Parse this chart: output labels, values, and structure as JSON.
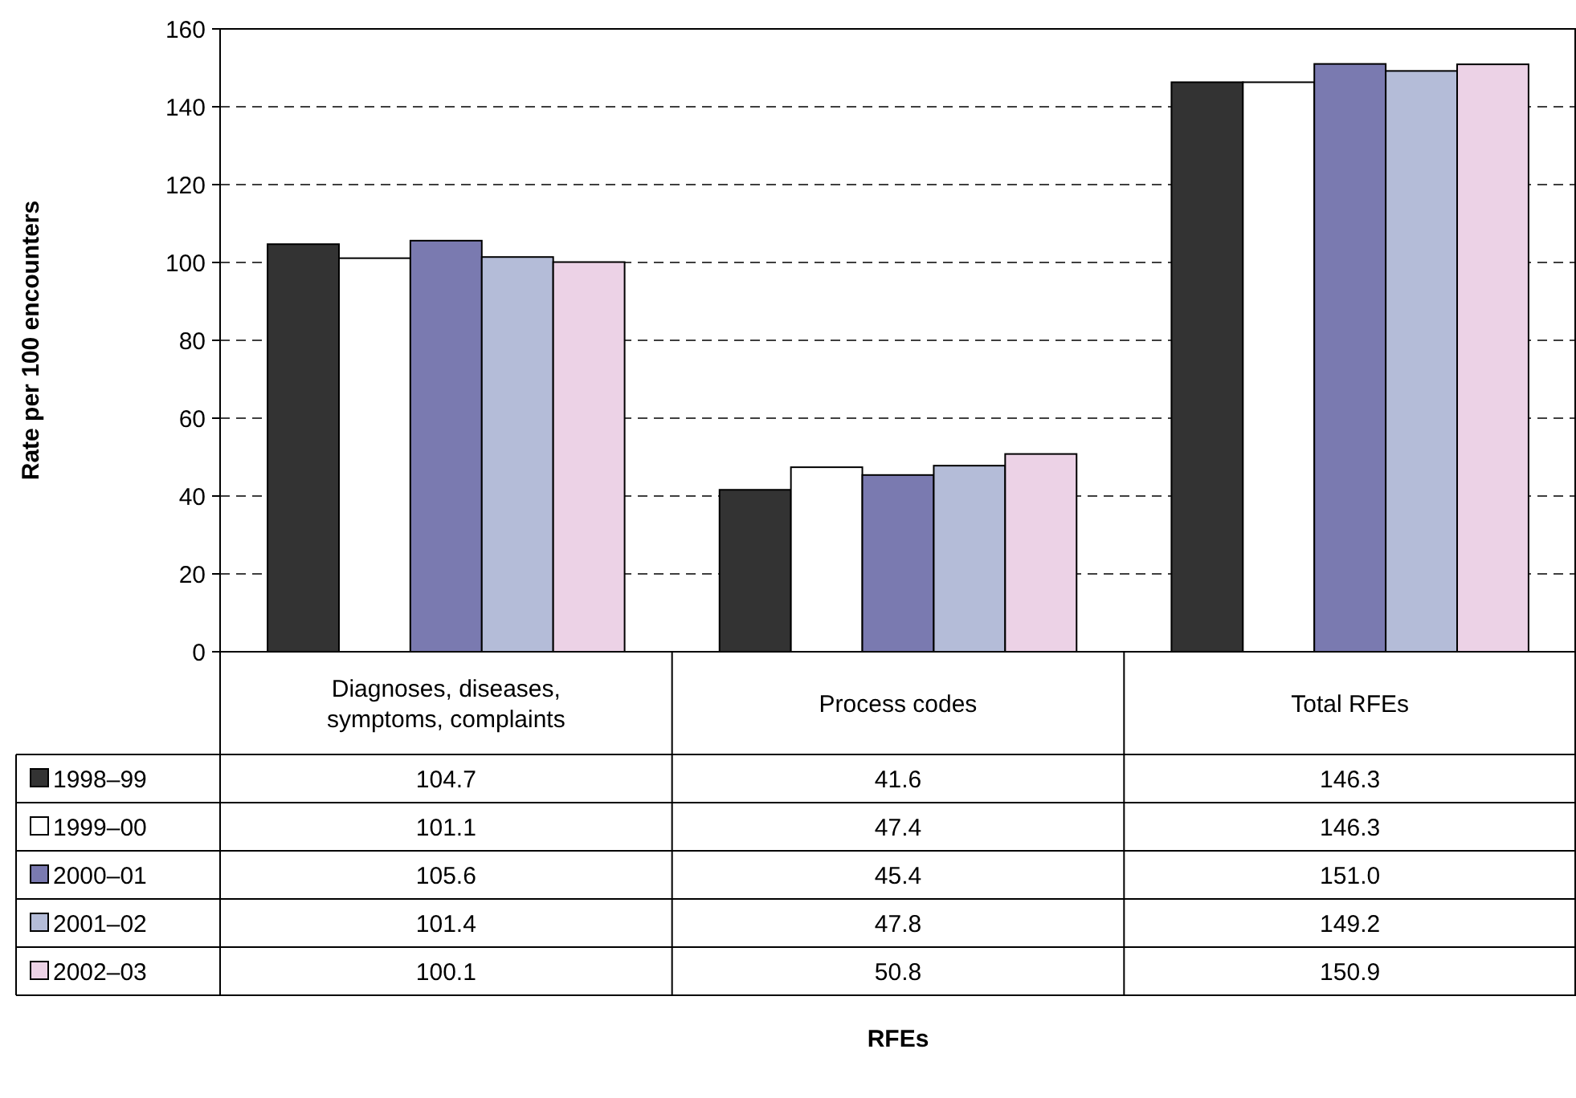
{
  "chart_data": {
    "type": "bar",
    "annotations": [
      "RFEs"
    ],
    "ylabel": "Rate per 100 encounters",
    "categories": [
      "Diagnoses, diseases, symptoms, complaints",
      "Process codes",
      "Total RFEs"
    ],
    "series": [
      {
        "name": "1998–99",
        "color": "#333333",
        "values": [
          104.7,
          41.6,
          146.3
        ],
        "value_labels": [
          "104.7",
          "41.6",
          "146.3"
        ]
      },
      {
        "name": "1999–00",
        "color": "#ffffff",
        "values": [
          101.1,
          47.4,
          146.3
        ],
        "value_labels": [
          "101.1",
          "47.4",
          "146.3"
        ]
      },
      {
        "name": "2000–01",
        "color": "#7a7ab0",
        "values": [
          105.6,
          45.4,
          151.0
        ],
        "value_labels": [
          "105.6",
          "45.4",
          "151.0"
        ]
      },
      {
        "name": "2001–02",
        "color": "#b4bcd8",
        "values": [
          101.4,
          47.8,
          149.2
        ],
        "value_labels": [
          "101.4",
          "47.8",
          "149.2"
        ]
      },
      {
        "name": "2002–03",
        "color": "#ecd2e6",
        "values": [
          100.1,
          50.8,
          150.9
        ],
        "value_labels": [
          "100.1",
          "50.8",
          "150.9"
        ]
      }
    ],
    "ylim": [
      0,
      160
    ],
    "yticks": [
      0,
      20,
      40,
      60,
      80,
      100,
      120,
      140,
      160
    ],
    "grid": "y",
    "legend": "bottom left"
  }
}
